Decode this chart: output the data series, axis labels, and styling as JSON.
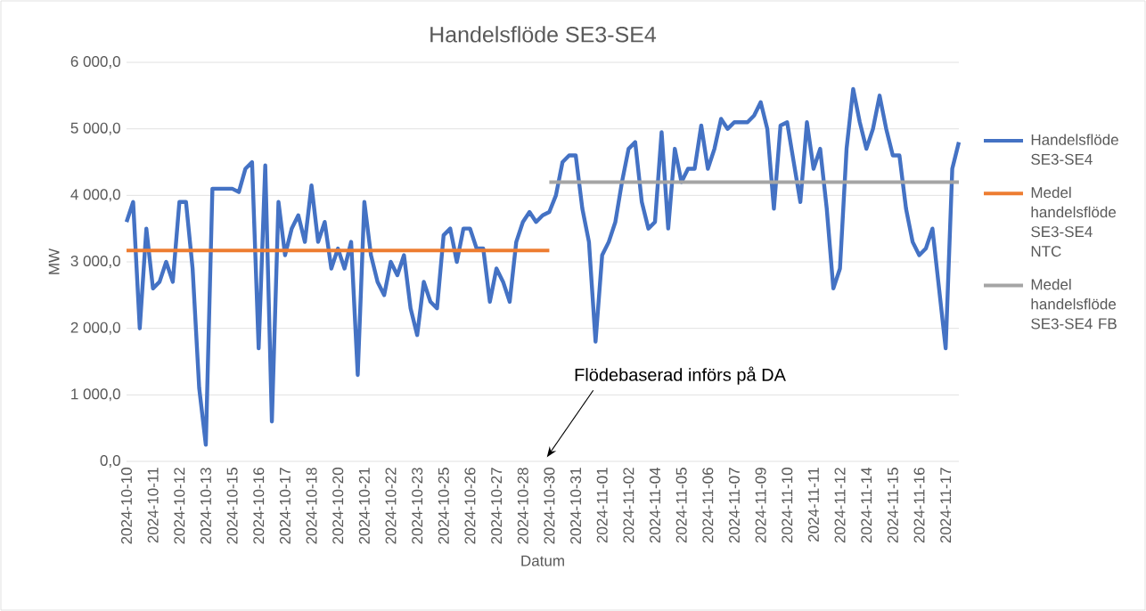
{
  "chart_data": {
    "type": "line",
    "title": "Handelsflöde SE3-SE4",
    "xlabel": "Datum",
    "ylabel": "MW",
    "categories": [
      "2024-10-10",
      null,
      null,
      null,
      "2024-10-11",
      null,
      null,
      null,
      "2024-10-12",
      null,
      null,
      null,
      "2024-10-13",
      null,
      null,
      null,
      "2024-10-15",
      null,
      null,
      null,
      "2024-10-16",
      null,
      null,
      null,
      "2024-10-17",
      null,
      null,
      null,
      "2024-10-18",
      null,
      null,
      null,
      "2024-10-20",
      null,
      null,
      null,
      "2024-10-21",
      null,
      null,
      null,
      "2024-10-22",
      null,
      null,
      null,
      "2024-10-23",
      null,
      null,
      null,
      "2024-10-25",
      null,
      null,
      null,
      "2024-10-26",
      null,
      null,
      null,
      "2024-10-27",
      null,
      null,
      null,
      "2024-10-28",
      null,
      null,
      null,
      "2024-10-30",
      null,
      null,
      null,
      "2024-10-31",
      null,
      null,
      null,
      "2024-11-01",
      null,
      null,
      null,
      "2024-11-02",
      null,
      null,
      null,
      "2024-11-04",
      null,
      null,
      null,
      "2024-11-05",
      null,
      null,
      null,
      "2024-11-06",
      null,
      null,
      null,
      "2024-11-07",
      null,
      null,
      null,
      "2024-11-09",
      null,
      null,
      null,
      "2024-11-10",
      null,
      null,
      null,
      "2024-11-11",
      null,
      null,
      null,
      "2024-11-12",
      null,
      null,
      null,
      "2024-11-14",
      null,
      null,
      null,
      "2024-11-15",
      null,
      null,
      null,
      "2024-11-16",
      null,
      null,
      null,
      "2024-11-17",
      null,
      null
    ],
    "series": [
      {
        "name": "Handelsflöde SE3-SE4",
        "color": "#4472c4",
        "values": [
          3600,
          3900,
          2000,
          3500,
          2600,
          2700,
          3000,
          2700,
          3900,
          3900,
          2900,
          1100,
          250,
          4100,
          4100,
          4100,
          4100,
          4050,
          4400,
          4500,
          1700,
          4450,
          600,
          3900,
          3100,
          3500,
          3700,
          3300,
          4150,
          3300,
          3600,
          2900,
          3200,
          2900,
          3300,
          1300,
          3900,
          3100,
          2700,
          2500,
          3000,
          2800,
          3100,
          2300,
          1900,
          2700,
          2400,
          2300,
          3400,
          3500,
          3000,
          3500,
          3500,
          3200,
          3200,
          2400,
          2900,
          2700,
          2400,
          3300,
          3600,
          3750,
          3600,
          3700,
          3750,
          4000,
          4500,
          4600,
          4600,
          3800,
          3300,
          1800,
          3100,
          3300,
          3600,
          4200,
          4700,
          4800,
          3900,
          3500,
          3600,
          4950,
          3500,
          4700,
          4200,
          4400,
          4400,
          5050,
          4400,
          4700,
          5150,
          5000,
          5100,
          5100,
          5100,
          5200,
          5400,
          5000,
          3800,
          5050,
          5100,
          4500,
          3900,
          5100,
          4400,
          4700,
          3800,
          2600,
          2900,
          4700,
          5600,
          5100,
          4700,
          5000,
          5500,
          5000,
          4600,
          4600,
          3800,
          3300,
          3100,
          3200,
          3500,
          2600,
          1700,
          4400,
          4800
        ]
      },
      {
        "name": "Medel handelsflöde SE3-SE4 NTC",
        "color": "#ed7d31",
        "values": [
          3170,
          3170,
          3170,
          3170,
          3170,
          3170,
          3170,
          3170,
          3170,
          3170,
          3170,
          3170,
          3170,
          3170,
          3170,
          3170,
          3170,
          3170,
          3170,
          3170,
          3170,
          3170,
          3170,
          3170,
          3170,
          3170,
          3170,
          3170,
          3170,
          3170,
          3170,
          3170,
          3170,
          3170,
          3170,
          3170,
          3170,
          3170,
          3170,
          3170,
          3170,
          3170,
          3170,
          3170,
          3170,
          3170,
          3170,
          3170,
          3170,
          3170,
          3170,
          3170,
          3170,
          3170,
          3170,
          3170,
          3170,
          3170,
          3170,
          3170,
          3170,
          3170,
          3170,
          3170,
          3170,
          null,
          null,
          null,
          null,
          null,
          null,
          null,
          null,
          null,
          null,
          null,
          null,
          null,
          null,
          null,
          null,
          null,
          null,
          null,
          null,
          null,
          null,
          null,
          null,
          null,
          null,
          null,
          null,
          null,
          null,
          null,
          null,
          null,
          null,
          null,
          null,
          null,
          null,
          null,
          null,
          null,
          null,
          null,
          null,
          null,
          null,
          null,
          null,
          null,
          null,
          null,
          null,
          null,
          null,
          null,
          null,
          null,
          null,
          null,
          null,
          null,
          null
        ]
      },
      {
        "name": "Medel handelsflöde SE3-SE4 FB",
        "color": "#a5a5a5",
        "values": [
          null,
          null,
          null,
          null,
          null,
          null,
          null,
          null,
          null,
          null,
          null,
          null,
          null,
          null,
          null,
          null,
          null,
          null,
          null,
          null,
          null,
          null,
          null,
          null,
          null,
          null,
          null,
          null,
          null,
          null,
          null,
          null,
          null,
          null,
          null,
          null,
          null,
          null,
          null,
          null,
          null,
          null,
          null,
          null,
          null,
          null,
          null,
          null,
          null,
          null,
          null,
          null,
          null,
          null,
          null,
          null,
          null,
          null,
          null,
          null,
          null,
          null,
          null,
          null,
          4200,
          4200,
          4200,
          4200,
          4200,
          4200,
          4200,
          4200,
          4200,
          4200,
          4200,
          4200,
          4200,
          4200,
          4200,
          4200,
          4200,
          4200,
          4200,
          4200,
          4200,
          4200,
          4200,
          4200,
          4200,
          4200,
          4200,
          4200,
          4200,
          4200,
          4200,
          4200,
          4200,
          4200,
          4200,
          4200,
          4200,
          4200,
          4200,
          4200,
          4200,
          4200,
          4200,
          4200,
          4200,
          4200,
          4200,
          4200,
          4200,
          4200,
          4200,
          4200,
          4200,
          4200,
          4200,
          4200,
          4200,
          4200,
          4200,
          4200,
          4200,
          4200,
          4200
        ]
      }
    ],
    "ylim": [
      0,
      6000
    ],
    "yticks": [
      {
        "value": 0,
        "label": "0,0"
      },
      {
        "value": 1000,
        "label": "1 000,0"
      },
      {
        "value": 2000,
        "label": "2 000,0"
      },
      {
        "value": 3000,
        "label": "3 000,0"
      },
      {
        "value": 4000,
        "label": "4 000,0"
      },
      {
        "value": 5000,
        "label": "5 000,0"
      },
      {
        "value": 6000,
        "label": "6 000,0"
      }
    ],
    "grid": "y",
    "legend": "right",
    "annotations": [
      "Flödebaserad införs på DA"
    ]
  }
}
